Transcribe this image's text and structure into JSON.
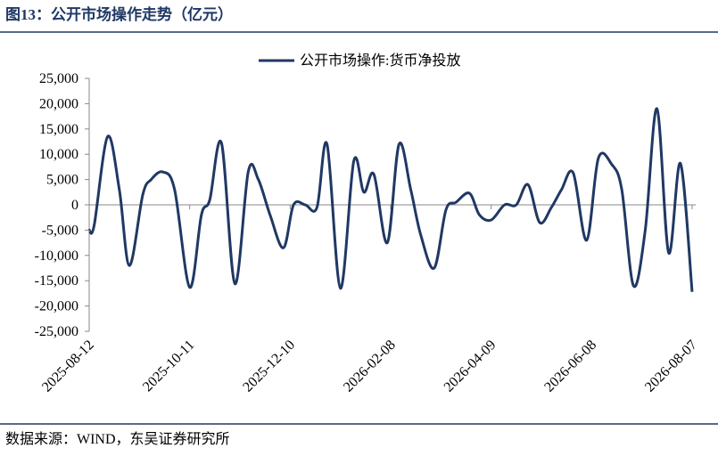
{
  "header": {
    "title": "图13：公开市场操作走势（亿元）"
  },
  "chart_data": {
    "type": "line",
    "x": [
      "2025-08-12",
      "2025-08-15",
      "2025-08-23",
      "2025-08-30",
      "2025-09-05",
      "2025-09-13",
      "2025-09-18",
      "2025-09-25",
      "2025-10-02",
      "2025-10-11",
      "2025-10-18",
      "2025-10-23",
      "2025-10-30",
      "2025-11-07",
      "2025-11-15",
      "2025-11-21",
      "2025-11-28",
      "2025-12-06",
      "2025-12-12",
      "2025-12-19",
      "2025-12-26",
      "2026-01-01",
      "2026-01-09",
      "2026-01-17",
      "2026-01-23",
      "2026-01-29",
      "2026-02-06",
      "2026-02-13",
      "2026-02-20",
      "2026-02-26",
      "2026-03-06",
      "2026-03-13",
      "2026-03-19",
      "2026-03-27",
      "2026-04-02",
      "2026-04-09",
      "2026-04-17",
      "2026-04-24",
      "2026-05-01",
      "2026-05-08",
      "2026-05-15",
      "2026-05-21",
      "2026-05-28",
      "2026-06-05",
      "2026-06-12",
      "2026-06-20",
      "2026-06-26",
      "2026-07-03",
      "2026-07-10",
      "2026-07-17",
      "2026-07-24",
      "2026-07-31",
      "2026-08-07"
    ],
    "series": [
      {
        "name": "公开市场操作:货币净投放",
        "color": "#203864",
        "values": [
          -5000,
          -4000,
          13500,
          3000,
          -12000,
          2000,
          5000,
          6500,
          3000,
          -16300,
          -2000,
          1000,
          12200,
          -15600,
          6600,
          5000,
          -2000,
          -8500,
          0,
          0,
          -500,
          12000,
          -16500,
          8700,
          2500,
          6000,
          -7500,
          12000,
          3000,
          -6000,
          -12500,
          -1000,
          500,
          2300,
          -2000,
          -3000,
          0,
          0,
          4000,
          -3500,
          -500,
          3000,
          6300,
          -7000,
          9200,
          8000,
          3000,
          -16000,
          -5000,
          19000,
          -9500,
          8200,
          -17200
        ]
      }
    ],
    "xlim": [
      "2025-08-12",
      "2026-08-07"
    ],
    "xticks": [
      "2025-08-12",
      "2025-10-11",
      "2025-12-10",
      "2026-02-08",
      "2026-04-09",
      "2026-06-08",
      "2026-08-07"
    ],
    "ylim": [
      -25000,
      25000
    ],
    "yticks": [
      {
        "value": -25000,
        "label": "-25,000"
      },
      {
        "value": -20000,
        "label": "-20,000"
      },
      {
        "value": -15000,
        "label": "-15,000"
      },
      {
        "value": -10000,
        "label": "-10,000"
      },
      {
        "value": -5000,
        "label": "-5,000"
      },
      0,
      {
        "value": 5000,
        "label": "5,000"
      },
      {
        "value": 10000,
        "label": "10,000"
      },
      {
        "value": 15000,
        "label": "15,000"
      },
      {
        "value": 20000,
        "label": "20,000"
      },
      {
        "value": 25000,
        "label": "25,000"
      }
    ],
    "legend": "top"
  },
  "footer": {
    "source": "数据来源：WIND，东吴证券研究所"
  }
}
